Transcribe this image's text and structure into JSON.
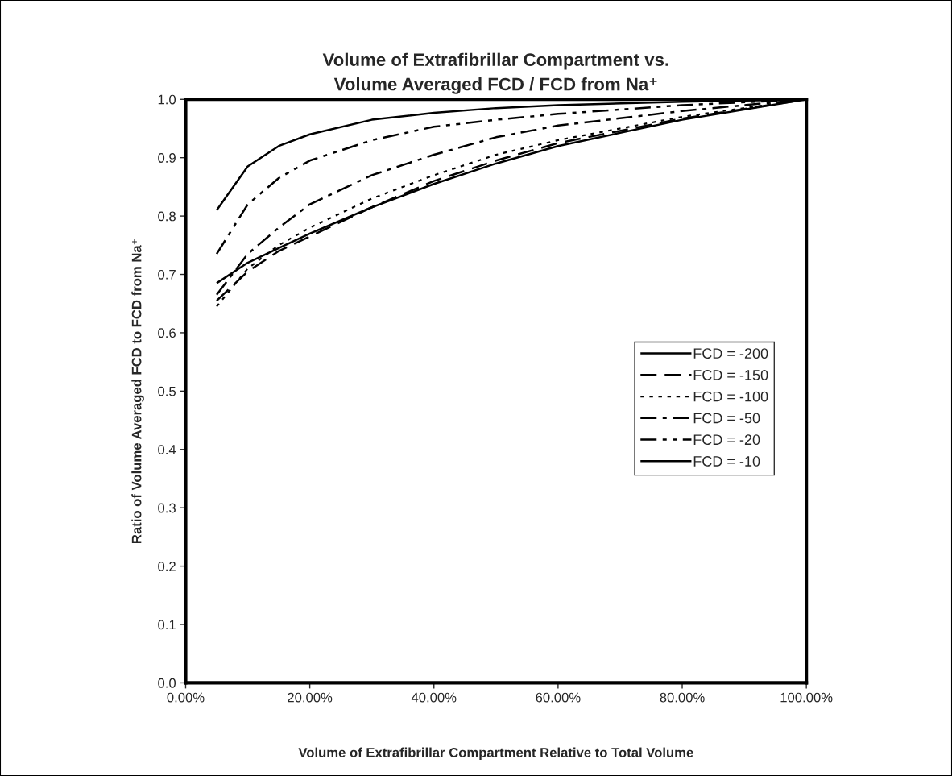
{
  "chart_data": {
    "type": "line",
    "title": "Volume of Extrafibrillar Compartment vs.\nVolume Averaged FCD / FCD from Na⁺",
    "xlabel": "Volume of Extrafibrillar Compartment Relative to Total Volume",
    "ylabel": "Ratio of Volume Averaged FCD to FCD from Na⁺",
    "x": [
      0.05,
      0.1,
      0.15,
      0.2,
      0.3,
      0.4,
      0.5,
      0.6,
      0.8,
      1.0
    ],
    "series": [
      {
        "name": "FCD = -200",
        "color": "#000000",
        "line_style": "solid",
        "values": [
          0.685,
          0.72,
          0.745,
          0.77,
          0.815,
          0.855,
          0.89,
          0.92,
          0.965,
          1.0
        ]
      },
      {
        "name": "FCD = -150",
        "color": "#000000",
        "line_style": "dashed",
        "values": [
          0.655,
          0.705,
          0.74,
          0.765,
          0.815,
          0.86,
          0.895,
          0.925,
          0.967,
          1.0
        ]
      },
      {
        "name": "FCD = -100",
        "color": "#000000",
        "line_style": "dotted",
        "values": [
          0.645,
          0.71,
          0.75,
          0.78,
          0.83,
          0.87,
          0.905,
          0.93,
          0.97,
          1.0
        ]
      },
      {
        "name": "FCD = -50",
        "color": "#000000",
        "line_style": "dashdot",
        "values": [
          0.665,
          0.735,
          0.78,
          0.82,
          0.87,
          0.905,
          0.935,
          0.955,
          0.98,
          1.0
        ]
      },
      {
        "name": "FCD = -20",
        "color": "#000000",
        "line_style": "dashdotdot",
        "values": [
          0.735,
          0.82,
          0.865,
          0.895,
          0.93,
          0.953,
          0.965,
          0.975,
          0.99,
          1.0
        ]
      },
      {
        "name": "FCD = -10",
        "color": "#000000",
        "line_style": "solid",
        "values": [
          0.81,
          0.885,
          0.92,
          0.94,
          0.965,
          0.977,
          0.985,
          0.99,
          0.996,
          1.0
        ]
      }
    ],
    "xlim": [
      0,
      1
    ],
    "xticks": [
      {
        "value": 0,
        "label": "0.00%"
      },
      {
        "value": 0.2,
        "label": "20.00%"
      },
      {
        "value": 0.4,
        "label": "40.00%"
      },
      {
        "value": 0.6,
        "label": "60.00%"
      },
      {
        "value": 0.8,
        "label": "80.00%"
      },
      {
        "value": 1.0,
        "label": "100.00%"
      }
    ],
    "ylim": [
      0,
      1
    ],
    "yticks": [
      {
        "value": 0,
        "label": "0.0"
      },
      {
        "value": 0.1,
        "label": "0.1"
      },
      {
        "value": 0.2,
        "label": "0.2"
      },
      {
        "value": 0.3,
        "label": "0.3"
      },
      {
        "value": 0.4,
        "label": "0.4"
      },
      {
        "value": 0.5,
        "label": "0.5"
      },
      {
        "value": 0.6,
        "label": "0.6"
      },
      {
        "value": 0.7,
        "label": "0.7"
      },
      {
        "value": 0.8,
        "label": "0.8"
      },
      {
        "value": 0.9,
        "label": "0.9"
      },
      {
        "value": 1.0,
        "label": "1.0"
      }
    ],
    "legend": "right",
    "grid": false,
    "marker": "none"
  }
}
